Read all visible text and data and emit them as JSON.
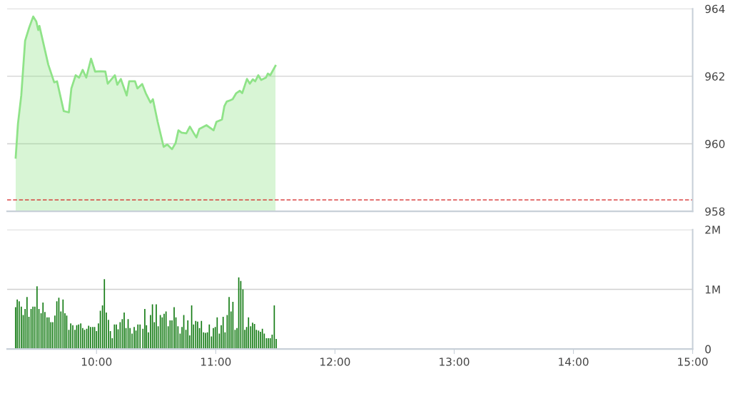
{
  "chart_data": [
    {
      "type": "area",
      "xlim": [
        9.25,
        15
      ],
      "ylim": [
        958,
        964
      ],
      "yticks": [
        958,
        960,
        962,
        964
      ],
      "grid": "y",
      "tick_labels": "y",
      "x": [
        9.322,
        9.341,
        9.369,
        9.401,
        9.435,
        9.469,
        9.495,
        9.511,
        9.521,
        9.595,
        9.645,
        9.669,
        9.725,
        9.768,
        9.789,
        9.825,
        9.854,
        9.884,
        9.914,
        9.954,
        9.988,
        10.034,
        10.074,
        10.094,
        10.154,
        10.174,
        10.204,
        10.253,
        10.274,
        10.323,
        10.343,
        10.383,
        10.413,
        10.453,
        10.473,
        10.513,
        10.563,
        10.593,
        10.633,
        10.663,
        10.687,
        10.713,
        10.753,
        10.783,
        10.813,
        10.838,
        10.862,
        10.922,
        10.982,
        11.006,
        11.052,
        11.072,
        11.092,
        11.122,
        11.142,
        11.172,
        11.202,
        11.222,
        11.262,
        11.286,
        11.311,
        11.331,
        11.357,
        11.381,
        11.421,
        11.437,
        11.457,
        11.501
      ],
      "series": [
        {
          "color": "#8fe388",
          "values": [
            959.59,
            960.59,
            961.44,
            963.05,
            963.44,
            963.77,
            963.62,
            963.37,
            963.49,
            962.35,
            961.82,
            961.85,
            960.97,
            960.93,
            961.64,
            962.03,
            961.96,
            962.19,
            961.96,
            962.52,
            962.14,
            962.15,
            962.14,
            961.78,
            962.03,
            961.75,
            961.92,
            961.43,
            961.85,
            961.85,
            961.64,
            961.77,
            961.5,
            961.22,
            961.32,
            960.65,
            959.91,
            959.98,
            959.84,
            960.02,
            960.4,
            960.33,
            960.31,
            960.51,
            960.33,
            960.19,
            960.44,
            960.55,
            960.4,
            960.65,
            960.72,
            961.11,
            961.25,
            961.29,
            961.32,
            961.5,
            961.57,
            961.5,
            961.92,
            961.78,
            961.91,
            961.85,
            962.03,
            961.89,
            961.96,
            962.08,
            962.03,
            962.31
          ]
        }
      ],
      "ref_lines": [
        {
          "axis": "y",
          "value": 958.34,
          "color": "#d42020",
          "line_style": "dashed"
        }
      ]
    },
    {
      "type": "bar",
      "xlim": [
        9.25,
        15
      ],
      "ylim": [
        0,
        2
      ],
      "grid": "y",
      "xticks": [
        {
          "value": 10,
          "label": "10:00"
        },
        {
          "value": 11,
          "label": "11:00"
        },
        {
          "value": 12,
          "label": "12:00"
        },
        {
          "value": 13,
          "label": "13:00"
        },
        {
          "value": 14,
          "label": "14:00"
        },
        {
          "value": 15,
          "label": "15:00"
        }
      ],
      "yticks": [
        0,
        {
          "value": 1,
          "label": "1M"
        },
        {
          "value": 2,
          "label": "2M"
        }
      ],
      "x": [
        9.321,
        9.335,
        9.351,
        9.369,
        9.385,
        9.401,
        9.417,
        9.433,
        9.451,
        9.467,
        9.483,
        9.501,
        9.517,
        9.535,
        9.551,
        9.567,
        9.585,
        9.601,
        9.617,
        9.633,
        9.651,
        9.667,
        9.684,
        9.701,
        9.719,
        9.735,
        9.75,
        9.768,
        9.784,
        9.801,
        9.819,
        9.834,
        9.85,
        9.868,
        9.884,
        9.9,
        9.918,
        9.934,
        9.95,
        9.968,
        9.984,
        10.0,
        10.016,
        10.032,
        10.05,
        10.066,
        10.082,
        10.1,
        10.116,
        10.132,
        10.15,
        10.166,
        10.181,
        10.198,
        10.216,
        10.232,
        10.247,
        10.265,
        10.281,
        10.298,
        10.316,
        10.331,
        10.347,
        10.365,
        10.389,
        10.405,
        10.419,
        10.435,
        10.453,
        10.469,
        10.485,
        10.501,
        10.517,
        10.535,
        10.551,
        10.567,
        10.583,
        10.601,
        10.617,
        10.633,
        10.651,
        10.666,
        10.683,
        10.701,
        10.717,
        10.732,
        10.75,
        10.766,
        10.782,
        10.798,
        10.814,
        10.832,
        10.848,
        10.864,
        10.88,
        10.898,
        10.914,
        10.93,
        10.946,
        10.964,
        10.98,
        10.996,
        11.012,
        11.03,
        11.046,
        11.062,
        11.078,
        11.096,
        11.112,
        11.128,
        11.144,
        11.162,
        11.178,
        11.193,
        11.21,
        11.228,
        11.244,
        11.259,
        11.275,
        11.293,
        11.309,
        11.325,
        11.341,
        11.359,
        11.375,
        11.391,
        11.407,
        11.425,
        11.441,
        11.457,
        11.473,
        11.491,
        11.507
      ],
      "series": [
        {
          "color": "#137b13",
          "values": [
            0.7,
            0.83,
            0.8,
            0.71,
            0.57,
            0.67,
            0.87,
            0.54,
            0.67,
            0.71,
            0.71,
            1.05,
            0.67,
            0.6,
            0.78,
            0.62,
            0.53,
            0.53,
            0.45,
            0.45,
            0.56,
            0.8,
            0.86,
            0.63,
            0.83,
            0.6,
            0.56,
            0.32,
            0.43,
            0.4,
            0.32,
            0.4,
            0.41,
            0.43,
            0.35,
            0.32,
            0.34,
            0.39,
            0.37,
            0.37,
            0.37,
            0.3,
            0.43,
            0.64,
            0.73,
            1.17,
            0.61,
            0.49,
            0.3,
            0.18,
            0.41,
            0.41,
            0.33,
            0.45,
            0.5,
            0.61,
            0.35,
            0.5,
            0.35,
            0.26,
            0.37,
            0.31,
            0.41,
            0.41,
            0.34,
            0.67,
            0.4,
            0.28,
            0.57,
            0.75,
            0.45,
            0.75,
            0.38,
            0.57,
            0.53,
            0.59,
            0.63,
            0.38,
            0.48,
            0.48,
            0.7,
            0.53,
            0.38,
            0.26,
            0.37,
            0.57,
            0.32,
            0.48,
            0.23,
            0.73,
            0.41,
            0.47,
            0.46,
            0.35,
            0.47,
            0.28,
            0.27,
            0.28,
            0.41,
            0.21,
            0.35,
            0.37,
            0.53,
            0.26,
            0.4,
            0.54,
            0.28,
            0.57,
            0.87,
            0.63,
            0.79,
            0.32,
            0.35,
            1.2,
            1.14,
            1.0,
            0.32,
            0.37,
            0.53,
            0.38,
            0.44,
            0.42,
            0.32,
            0.31,
            0.29,
            0.34,
            0.26,
            0.18,
            0.18,
            0.18,
            0.24,
            0.73,
            0.17
          ]
        }
      ]
    }
  ]
}
